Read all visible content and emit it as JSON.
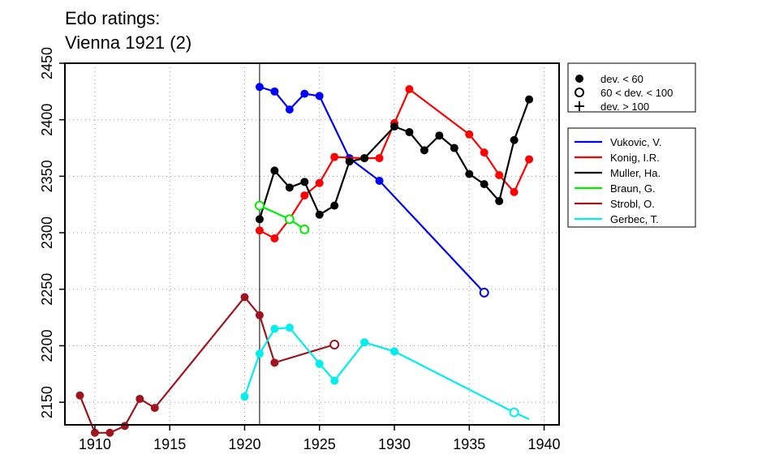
{
  "chart_data": {
    "type": "line",
    "title_lines": [
      "Edo ratings:",
      "Vienna 1921 (2)"
    ],
    "xlabel": "",
    "ylabel": "",
    "xlim": [
      1908,
      1941
    ],
    "ylim": [
      2130,
      2450
    ],
    "xticks": [
      1910,
      1915,
      1920,
      1925,
      1930,
      1935,
      1940
    ],
    "yticks": [
      2150,
      2200,
      2250,
      2300,
      2350,
      2400,
      2450
    ],
    "grid": true,
    "reference_line_x": 1921,
    "marker_legend": [
      {
        "label": "dev. < 60",
        "marker": "filled"
      },
      {
        "label": "60 < dev. < 100",
        "marker": "open"
      },
      {
        "label": "dev. > 100",
        "marker": "plus"
      }
    ],
    "series": [
      {
        "name": "Vukovic, V.",
        "color": "#0000ff",
        "points": [
          {
            "x": 1921,
            "y": 2429,
            "m": "filled"
          },
          {
            "x": 1922,
            "y": 2425,
            "m": "filled"
          },
          {
            "x": 1923,
            "y": 2409,
            "m": "filled"
          },
          {
            "x": 1924,
            "y": 2423,
            "m": "filled"
          },
          {
            "x": 1925,
            "y": 2421,
            "m": "filled"
          },
          {
            "x": 1927,
            "y": 2366,
            "m": "filled"
          },
          {
            "x": 1929,
            "y": 2346,
            "m": "filled"
          },
          {
            "x": 1936,
            "y": 2247,
            "m": "open"
          }
        ]
      },
      {
        "name": "Konig, I.R.",
        "color": "#ff0000",
        "points": [
          {
            "x": 1921,
            "y": 2302,
            "m": "filled"
          },
          {
            "x": 1922,
            "y": 2295,
            "m": "filled"
          },
          {
            "x": 1923,
            "y": 2312,
            "m": "filled"
          },
          {
            "x": 1924,
            "y": 2333,
            "m": "filled"
          },
          {
            "x": 1925,
            "y": 2344,
            "m": "filled"
          },
          {
            "x": 1926,
            "y": 2367,
            "m": "filled"
          },
          {
            "x": 1928,
            "y": 2366,
            "m": "filled"
          },
          {
            "x": 1929,
            "y": 2366,
            "m": "filled"
          },
          {
            "x": 1930,
            "y": 2397,
            "m": "filled"
          },
          {
            "x": 1931,
            "y": 2427,
            "m": "filled"
          },
          {
            "x": 1935,
            "y": 2387,
            "m": "filled"
          },
          {
            "x": 1936,
            "y": 2371,
            "m": "filled"
          },
          {
            "x": 1937,
            "y": 2351,
            "m": "filled"
          },
          {
            "x": 1938,
            "y": 2336,
            "m": "filled"
          },
          {
            "x": 1939,
            "y": 2365,
            "m": "filled"
          }
        ]
      },
      {
        "name": "Muller, Ha.",
        "color": "#000000",
        "points": [
          {
            "x": 1921,
            "y": 2312,
            "m": "filled"
          },
          {
            "x": 1922,
            "y": 2355,
            "m": "filled"
          },
          {
            "x": 1923,
            "y": 2340,
            "m": "filled"
          },
          {
            "x": 1924,
            "y": 2345,
            "m": "filled"
          },
          {
            "x": 1925,
            "y": 2316,
            "m": "filled"
          },
          {
            "x": 1926,
            "y": 2324,
            "m": "filled"
          },
          {
            "x": 1927,
            "y": 2363,
            "m": "filled"
          },
          {
            "x": 1928,
            "y": 2366,
            "m": "filled"
          },
          {
            "x": 1930,
            "y": 2394,
            "m": "filled"
          },
          {
            "x": 1931,
            "y": 2389,
            "m": "filled"
          },
          {
            "x": 1932,
            "y": 2373,
            "m": "filled"
          },
          {
            "x": 1933,
            "y": 2386,
            "m": "filled"
          },
          {
            "x": 1934,
            "y": 2375,
            "m": "filled"
          },
          {
            "x": 1935,
            "y": 2352,
            "m": "filled"
          },
          {
            "x": 1936,
            "y": 2343,
            "m": "filled"
          },
          {
            "x": 1937,
            "y": 2328,
            "m": "filled"
          },
          {
            "x": 1938,
            "y": 2382,
            "m": "filled"
          },
          {
            "x": 1939,
            "y": 2418,
            "m": "filled"
          }
        ]
      },
      {
        "name": "Braun, G.",
        "color": "#00ee00",
        "points": [
          {
            "x": 1921,
            "y": 2324,
            "m": "open"
          },
          {
            "x": 1923,
            "y": 2312,
            "m": "open"
          },
          {
            "x": 1924,
            "y": 2303,
            "m": "open"
          }
        ]
      },
      {
        "name": "Strobl, O.",
        "color": "#a0141e",
        "points": [
          {
            "x": 1909,
            "y": 2156,
            "m": "filled"
          },
          {
            "x": 1910,
            "y": 2123,
            "m": "filled"
          },
          {
            "x": 1911,
            "y": 2123,
            "m": "filled"
          },
          {
            "x": 1912,
            "y": 2129,
            "m": "filled"
          },
          {
            "x": 1913,
            "y": 2153,
            "m": "filled"
          },
          {
            "x": 1914,
            "y": 2145,
            "m": "filled"
          },
          {
            "x": 1920,
            "y": 2243,
            "m": "filled"
          },
          {
            "x": 1921,
            "y": 2227,
            "m": "filled"
          },
          {
            "x": 1922,
            "y": 2185,
            "m": "filled"
          },
          {
            "x": 1926,
            "y": 2201,
            "m": "open"
          }
        ]
      },
      {
        "name": "Gerbec, T.",
        "color": "#00eeee",
        "points": [
          {
            "x": 1920,
            "y": 2155,
            "m": "filled"
          },
          {
            "x": 1921,
            "y": 2193,
            "m": "filled"
          },
          {
            "x": 1922,
            "y": 2215,
            "m": "filled"
          },
          {
            "x": 1923,
            "y": 2216,
            "m": "filled"
          },
          {
            "x": 1925,
            "y": 2184,
            "m": "filled"
          },
          {
            "x": 1926,
            "y": 2169,
            "m": "filled"
          },
          {
            "x": 1928,
            "y": 2203,
            "m": "filled"
          },
          {
            "x": 1930,
            "y": 2195,
            "m": "filled"
          },
          {
            "x": 1938,
            "y": 2141,
            "m": "open"
          },
          {
            "x": 1939,
            "y": 2135,
            "m": "none"
          }
        ]
      }
    ]
  }
}
